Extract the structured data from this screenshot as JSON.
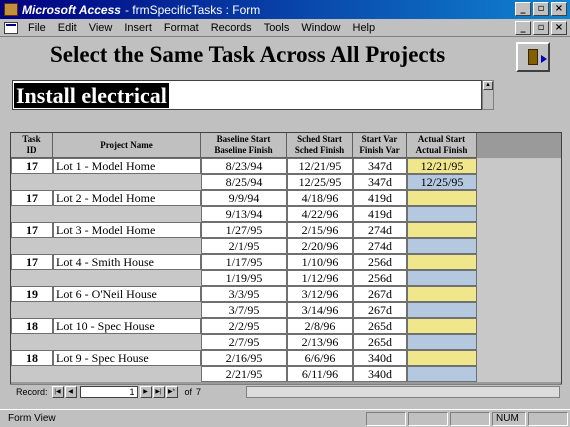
{
  "window": {
    "app_name": "Microsoft Access",
    "doc_title": "- frmSpecificTasks : Form",
    "controls": [
      "_",
      "▫",
      "×"
    ]
  },
  "menu": [
    "File",
    "Edit",
    "View",
    "Insert",
    "Format",
    "Records",
    "Tools",
    "Window",
    "Help"
  ],
  "form": {
    "heading": "Select the Same Task Across All Projects",
    "task_value": "Install electrical"
  },
  "grid": {
    "headers": {
      "task_id": [
        "Task",
        "ID"
      ],
      "project": "Project Name",
      "baseline": [
        "Baseline Start",
        "Baseline Finish"
      ],
      "sched": [
        "Sched Start",
        "Sched Finish"
      ],
      "var": [
        "Start Var",
        "Finish Var"
      ],
      "actual": [
        "Actual Start",
        "Actual Finish"
      ]
    },
    "records": [
      {
        "task_id": "17",
        "project": "Lot 1 - Model Home",
        "baseline_start": "8/23/94",
        "baseline_finish": "8/25/94",
        "sched_start": "12/21/95",
        "sched_finish": "12/25/95",
        "start_var": "347d",
        "finish_var": "347d",
        "actual_start": "12/21/95",
        "actual_finish": "12/25/95"
      },
      {
        "task_id": "17",
        "project": "Lot 2 - Model Home",
        "baseline_start": "9/9/94",
        "baseline_finish": "9/13/94",
        "sched_start": "4/18/96",
        "sched_finish": "4/22/96",
        "start_var": "419d",
        "finish_var": "419d",
        "actual_start": "",
        "actual_finish": ""
      },
      {
        "task_id": "17",
        "project": "Lot 3 - Model Home",
        "baseline_start": "1/27/95",
        "baseline_finish": "2/1/95",
        "sched_start": "2/15/96",
        "sched_finish": "2/20/96",
        "start_var": "274d",
        "finish_var": "274d",
        "actual_start": "",
        "actual_finish": ""
      },
      {
        "task_id": "17",
        "project": "Lot 4 - Smith House",
        "baseline_start": "1/17/95",
        "baseline_finish": "1/19/95",
        "sched_start": "1/10/96",
        "sched_finish": "1/12/96",
        "start_var": "256d",
        "finish_var": "256d",
        "actual_start": "",
        "actual_finish": ""
      },
      {
        "task_id": "19",
        "project": "Lot 6 - O'Neil House",
        "baseline_start": "3/3/95",
        "baseline_finish": "3/7/95",
        "sched_start": "3/12/96",
        "sched_finish": "3/14/96",
        "start_var": "267d",
        "finish_var": "267d",
        "actual_start": "",
        "actual_finish": ""
      },
      {
        "task_id": "18",
        "project": "Lot 10 - Spec House",
        "baseline_start": "2/2/95",
        "baseline_finish": "2/7/95",
        "sched_start": "2/8/96",
        "sched_finish": "2/13/96",
        "start_var": "265d",
        "finish_var": "265d",
        "actual_start": "",
        "actual_finish": ""
      },
      {
        "task_id": "18",
        "project": "Lot 9 - Spec House",
        "baseline_start": "2/16/95",
        "baseline_finish": "2/21/95",
        "sched_start": "6/6/96",
        "sched_finish": "6/11/96",
        "start_var": "340d",
        "finish_var": "340d",
        "actual_start": "",
        "actual_finish": ""
      }
    ]
  },
  "navigator": {
    "label": "Record:",
    "current": "1",
    "of_label": "of",
    "total": "7",
    "buttons": [
      "|◀",
      "◀",
      "▶",
      "▶|",
      "▶*"
    ]
  },
  "status": {
    "text": "Form View",
    "num": "NUM"
  },
  "colors": {
    "title_start": "#000080",
    "title_end": "#1084d0",
    "actual_start_fill": "#f0e68c",
    "actual_finish_fill": "#b4c8e0"
  }
}
